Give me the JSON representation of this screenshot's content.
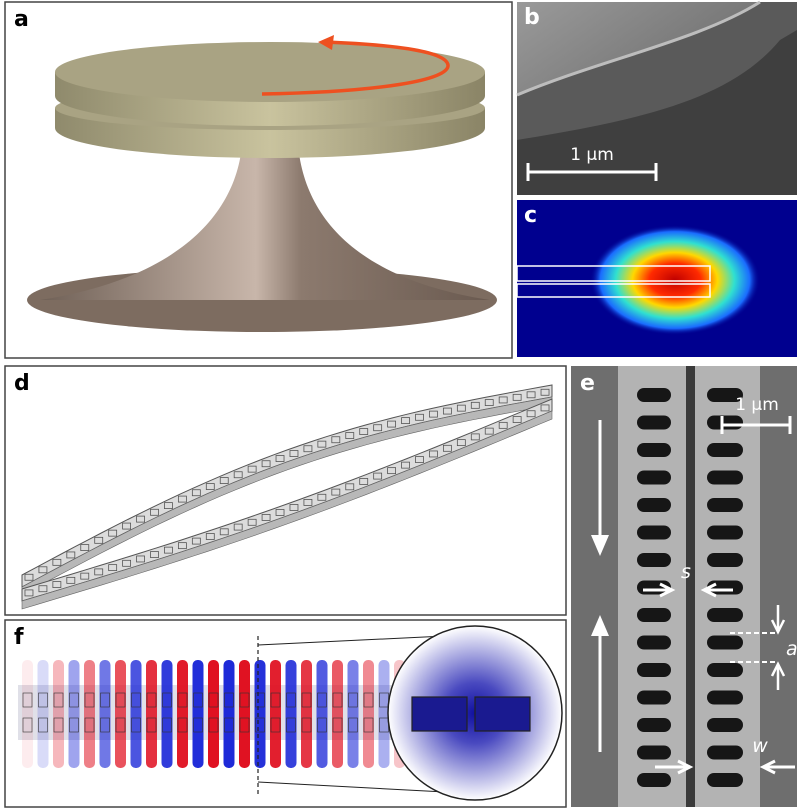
{
  "panels": {
    "a": {
      "label": "a"
    },
    "b": {
      "label": "b",
      "scale_bar": "1 μm"
    },
    "c": {
      "label": "c"
    },
    "d": {
      "label": "d"
    },
    "e": {
      "label": "e",
      "scale_bar": "1 μm",
      "gap_label": "s",
      "period_label": "a",
      "width_label": "w"
    },
    "f": {
      "label": "f"
    }
  }
}
